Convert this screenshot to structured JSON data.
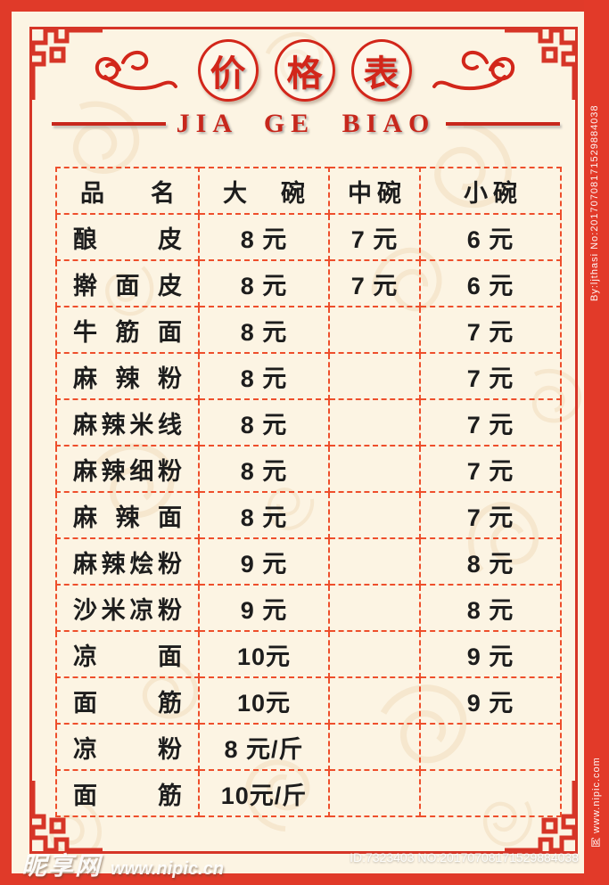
{
  "title": {
    "chars": [
      "价",
      "格",
      "表"
    ],
    "pinyin": "JIA GE BIAO"
  },
  "menu_table": {
    "header": [
      "品名",
      "大碗",
      "中碗",
      "小碗"
    ],
    "rows": [
      [
        "酿皮",
        "8 元",
        "7 元",
        "6 元"
      ],
      [
        "擀面皮",
        "8 元",
        "7 元",
        "6 元"
      ],
      [
        "牛筋面",
        "8 元",
        "",
        "7 元"
      ],
      [
        "麻辣粉",
        "8 元",
        "",
        "7 元"
      ],
      [
        "麻辣米线",
        "8 元",
        "",
        "7 元"
      ],
      [
        "麻辣细粉",
        "8 元",
        "",
        "7 元"
      ],
      [
        "麻辣面",
        "8 元",
        "",
        "7 元"
      ],
      [
        "麻辣烩粉",
        "9 元",
        "",
        "8 元"
      ],
      [
        "沙米凉粉",
        "9 元",
        "",
        "8 元"
      ],
      [
        "凉面",
        "10元",
        "",
        "9 元"
      ],
      [
        "面筋",
        "10元",
        "",
        "9 元"
      ],
      [
        "凉粉",
        "8 元/斤",
        "",
        ""
      ],
      [
        "面筋",
        "10元/斤",
        "",
        ""
      ]
    ]
  },
  "watermarks": {
    "bottom_left_brand": "昵享网",
    "bottom_left_url": "www.nipic.cn",
    "bottom_right_id": "ID:7323403 NO:20170708171529884038",
    "right_top_vertical": "By:ljthasi No:20170708171529884038",
    "right_bottom_vertical": "网 www.nipic.com"
  },
  "colors": {
    "frame_red": "#e03a29",
    "dashed_border_red": "#ee4f2c",
    "title_red": "#d2261a",
    "background_cream": "#fcf4e3",
    "text_black": "#1d1d1d"
  }
}
